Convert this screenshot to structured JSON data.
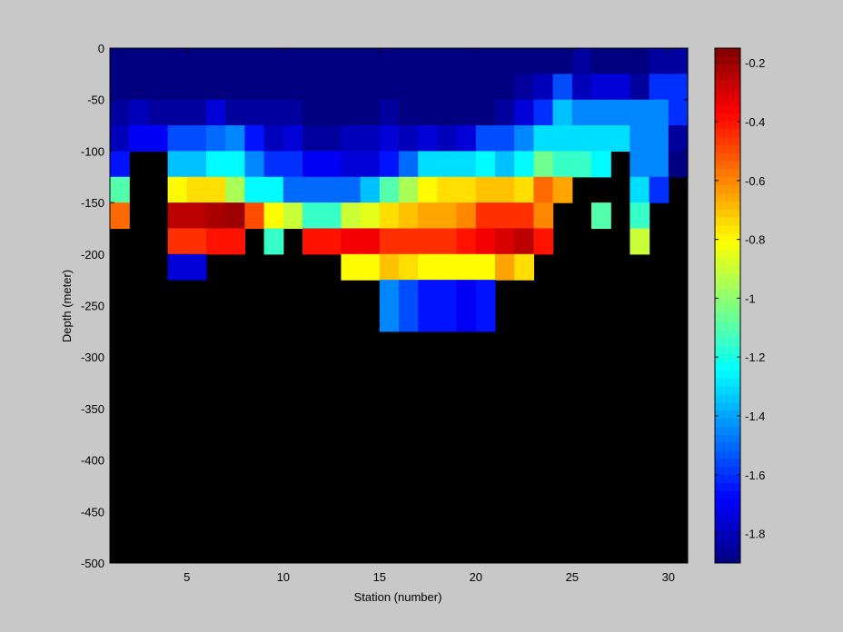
{
  "chart_data": {
    "type": "heatmap",
    "title": "",
    "xlabel": "Station (number)",
    "ylabel": "Depth (meter)",
    "xlim": [
      1,
      31
    ],
    "ylim": [
      -500,
      0
    ],
    "xticks": [
      5,
      10,
      15,
      20,
      25,
      30
    ],
    "yticks": [
      0,
      -50,
      -100,
      -150,
      -200,
      -250,
      -300,
      -350,
      -400,
      -450,
      -500
    ],
    "color_range": [
      -1.9,
      -0.15
    ],
    "colorbar_ticks": [
      -0.2,
      -0.4,
      -0.6,
      -0.8,
      -1,
      -1.2,
      -1.4,
      -1.6,
      -1.8
    ],
    "colormap": "jet",
    "background_color": "#000000",
    "depth_top_m": 0,
    "depth_step_m": 25,
    "station_start": 1,
    "rows": [
      [
        -1.9,
        -1.9,
        -1.9,
        -1.9,
        -1.9,
        -1.9,
        -1.9,
        -1.9,
        -1.9,
        -1.9,
        -1.9,
        -1.9,
        -1.9,
        -1.9,
        -1.9,
        -1.9,
        -1.9,
        -1.9,
        -1.9,
        -1.9,
        -1.9,
        -1.9,
        -1.9,
        -1.9,
        -1.85,
        -1.9,
        -1.9,
        -1.9,
        -1.85,
        -1.85
      ],
      [
        -1.9,
        -1.9,
        -1.9,
        -1.9,
        -1.9,
        -1.9,
        -1.9,
        -1.9,
        -1.9,
        -1.9,
        -1.9,
        -1.9,
        -1.9,
        -1.9,
        -1.9,
        -1.9,
        -1.9,
        -1.9,
        -1.9,
        -1.9,
        -1.9,
        -1.85,
        -1.8,
        -1.55,
        -1.8,
        -1.75,
        -1.75,
        -1.85,
        -1.6,
        -1.6
      ],
      [
        -1.85,
        -1.8,
        -1.85,
        -1.85,
        -1.85,
        -1.75,
        -1.85,
        -1.85,
        -1.85,
        -1.85,
        -1.9,
        -1.9,
        -1.9,
        -1.9,
        -1.85,
        -1.9,
        -1.9,
        -1.9,
        -1.9,
        -1.9,
        -1.85,
        -1.75,
        -1.6,
        -1.35,
        -1.45,
        -1.45,
        -1.45,
        -1.45,
        -1.45,
        -1.6
      ],
      [
        -1.8,
        -1.7,
        -1.7,
        -1.55,
        -1.55,
        -1.5,
        -1.45,
        -1.65,
        -1.8,
        -1.75,
        -1.85,
        -1.85,
        -1.8,
        -1.8,
        -1.75,
        -1.8,
        -1.75,
        -1.8,
        -1.75,
        -1.55,
        -1.55,
        -1.45,
        -1.3,
        -1.3,
        -1.3,
        -1.3,
        -1.3,
        -1.45,
        -1.45,
        -1.85
      ],
      [
        -1.65,
        null,
        null,
        -1.35,
        -1.35,
        -1.25,
        -1.25,
        -1.45,
        -1.6,
        -1.6,
        -1.7,
        -1.7,
        -1.75,
        -1.75,
        -1.65,
        -1.5,
        -1.3,
        -1.3,
        -1.3,
        -1.25,
        -1.35,
        -1.25,
        -1.05,
        -1.15,
        -1.15,
        -1.25,
        null,
        -1.45,
        -1.45,
        -1.9
      ],
      [
        -1.1,
        null,
        null,
        -0.8,
        -0.75,
        -0.75,
        -0.95,
        -1.25,
        -1.25,
        -1.5,
        -1.5,
        -1.5,
        -1.5,
        -1.35,
        -1.1,
        -0.95,
        -0.8,
        -0.75,
        -0.75,
        -0.7,
        -0.7,
        -0.75,
        -0.55,
        -0.65,
        null,
        null,
        null,
        -1.3,
        -1.6,
        null
      ],
      [
        -0.55,
        null,
        null,
        -0.25,
        -0.25,
        -0.22,
        -0.2,
        -0.5,
        -0.8,
        -0.9,
        -1.15,
        -1.15,
        -0.9,
        -0.85,
        -0.75,
        -0.7,
        -0.65,
        -0.65,
        -0.6,
        -0.45,
        -0.45,
        -0.45,
        -0.6,
        null,
        null,
        -1.1,
        null,
        -1.15,
        null,
        null
      ],
      [
        null,
        null,
        null,
        -0.45,
        -0.45,
        -0.4,
        -0.4,
        null,
        -1.15,
        null,
        -0.4,
        -0.4,
        -0.35,
        -0.35,
        -0.45,
        -0.45,
        -0.45,
        -0.45,
        -0.4,
        -0.35,
        -0.3,
        -0.25,
        -0.4,
        null,
        null,
        null,
        null,
        -0.9,
        null,
        null
      ],
      [
        null,
        null,
        null,
        -1.75,
        -1.75,
        null,
        null,
        null,
        null,
        null,
        null,
        null,
        -0.8,
        -0.8,
        -0.7,
        -0.75,
        -0.8,
        -0.8,
        -0.8,
        -0.8,
        -0.65,
        -0.75,
        null,
        null,
        null,
        null,
        null,
        null,
        null,
        null
      ],
      [
        null,
        null,
        null,
        null,
        null,
        null,
        null,
        null,
        null,
        null,
        null,
        null,
        null,
        null,
        -1.45,
        -1.55,
        -1.65,
        -1.65,
        -1.7,
        -1.65,
        null,
        null,
        null,
        null,
        null,
        null,
        null,
        null,
        null,
        null
      ],
      [
        null,
        null,
        null,
        null,
        null,
        null,
        null,
        null,
        null,
        null,
        null,
        null,
        null,
        null,
        -1.45,
        -1.55,
        -1.65,
        -1.65,
        -1.7,
        -1.65,
        null,
        null,
        null,
        null,
        null,
        null,
        null,
        null,
        null,
        null
      ],
      [
        null,
        null,
        null,
        null,
        null,
        null,
        null,
        null,
        null,
        null,
        null,
        null,
        null,
        null,
        null,
        null,
        null,
        null,
        null,
        null,
        null,
        null,
        null,
        null,
        null,
        null,
        null,
        null,
        null,
        null
      ],
      [
        null,
        null,
        null,
        null,
        null,
        null,
        null,
        null,
        null,
        null,
        null,
        null,
        null,
        null,
        null,
        null,
        null,
        null,
        null,
        null,
        null,
        null,
        null,
        null,
        null,
        null,
        null,
        null,
        null,
        null
      ],
      [
        null,
        null,
        null,
        null,
        null,
        null,
        null,
        null,
        null,
        null,
        null,
        null,
        null,
        null,
        null,
        null,
        null,
        null,
        null,
        null,
        null,
        null,
        null,
        null,
        null,
        null,
        null,
        null,
        null,
        null
      ],
      [
        null,
        null,
        null,
        null,
        null,
        null,
        null,
        null,
        null,
        null,
        null,
        null,
        null,
        null,
        null,
        null,
        null,
        null,
        null,
        null,
        null,
        null,
        null,
        null,
        null,
        null,
        null,
        null,
        null,
        null
      ],
      [
        null,
        null,
        null,
        null,
        null,
        null,
        null,
        null,
        null,
        null,
        null,
        null,
        null,
        null,
        null,
        null,
        null,
        null,
        null,
        null,
        null,
        null,
        null,
        null,
        null,
        null,
        null,
        null,
        null,
        null
      ],
      [
        null,
        null,
        null,
        null,
        null,
        null,
        null,
        null,
        null,
        null,
        null,
        null,
        null,
        null,
        null,
        null,
        null,
        null,
        null,
        null,
        null,
        null,
        null,
        null,
        null,
        null,
        null,
        null,
        null,
        null
      ],
      [
        null,
        null,
        null,
        null,
        null,
        null,
        null,
        null,
        null,
        null,
        null,
        null,
        null,
        null,
        null,
        null,
        null,
        null,
        null,
        null,
        null,
        null,
        null,
        null,
        null,
        null,
        null,
        null,
        null,
        null
      ],
      [
        null,
        null,
        null,
        null,
        null,
        null,
        null,
        null,
        null,
        null,
        null,
        null,
        null,
        null,
        null,
        null,
        null,
        null,
        null,
        null,
        null,
        null,
        null,
        null,
        null,
        null,
        null,
        null,
        null,
        null
      ],
      [
        null,
        null,
        null,
        null,
        null,
        null,
        null,
        null,
        null,
        null,
        null,
        null,
        null,
        null,
        null,
        null,
        null,
        null,
        null,
        null,
        null,
        null,
        null,
        null,
        null,
        null,
        null,
        null,
        null,
        null
      ]
    ]
  }
}
